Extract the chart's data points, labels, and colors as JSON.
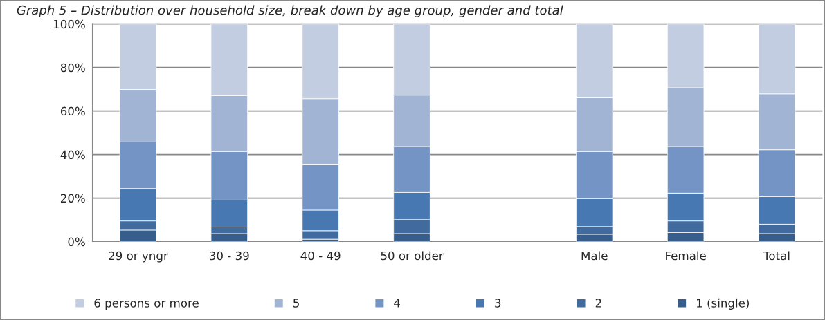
{
  "chart_data": {
    "type": "bar",
    "stacked": true,
    "title": "Graph 5 – Distribution over household size, break down by age group, gender and total",
    "categories": [
      "29 or yngr",
      "30 - 39",
      "40 - 49",
      "50 or older",
      null,
      "Male",
      "Female",
      "Total"
    ],
    "series": [
      {
        "name": "1 (single)",
        "color": "#375d8c",
        "values": [
          5.3,
          3.7,
          1.1,
          3.7,
          null,
          3.4,
          4.2,
          3.7
        ]
      },
      {
        "name": "2",
        "color": "#416b9e",
        "values": [
          4.2,
          3.0,
          3.9,
          6.4,
          null,
          3.5,
          5.3,
          4.3
        ]
      },
      {
        "name": "3",
        "color": "#4878b2",
        "values": [
          14.9,
          12.4,
          9.5,
          12.5,
          null,
          12.9,
          12.8,
          12.7
        ]
      },
      {
        "name": "4",
        "color": "#7494c5",
        "values": [
          21.4,
          22.3,
          20.8,
          21.1,
          null,
          21.6,
          21.4,
          21.5
        ]
      },
      {
        "name": "5",
        "color": "#a1b4d4",
        "values": [
          24.1,
          25.7,
          30.4,
          23.6,
          null,
          24.7,
          27.0,
          25.7
        ]
      },
      {
        "name": "6 persons or more",
        "color": "#c2cde1",
        "values": [
          30.1,
          32.9,
          34.3,
          32.7,
          null,
          33.9,
          29.3,
          32.1
        ]
      }
    ],
    "ylim": [
      0,
      100
    ],
    "yticks": [
      {
        "value": 0,
        "label": "0%"
      },
      {
        "value": 20,
        "label": "20%"
      },
      {
        "value": 40,
        "label": "40%"
      },
      {
        "value": 60,
        "label": "60%"
      },
      {
        "value": 80,
        "label": "80%"
      },
      {
        "value": 100,
        "label": "100%"
      }
    ],
    "grid": "y",
    "legend": "bottom"
  }
}
